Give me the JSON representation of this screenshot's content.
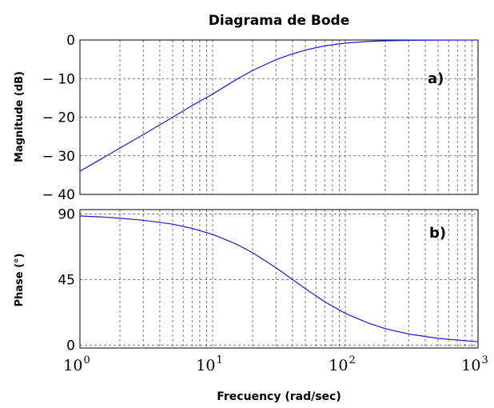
{
  "chart_data": [
    {
      "panel": "a)",
      "type": "line",
      "title": "Diagrama de Bode",
      "xlabel": "",
      "ylabel": "Magnitude (dB)",
      "xscale": "log",
      "xlim": [
        1,
        1000
      ],
      "ylim": [
        -40,
        0
      ],
      "yticks": [
        {
          "value": 0,
          "label": "0"
        },
        {
          "value": -10,
          "label": "− 10"
        },
        {
          "value": -20,
          "label": "− 20"
        },
        {
          "value": -30,
          "label": "− 30"
        },
        {
          "value": -40,
          "label": "− 40"
        }
      ],
      "grid": true,
      "color": "#1a1adb",
      "x": [
        1,
        1.5,
        2,
        3,
        5,
        7,
        10,
        15,
        20,
        30,
        40,
        50,
        70,
        100,
        150,
        200,
        300,
        500,
        1000
      ],
      "y": [
        -34,
        -30.5,
        -28,
        -24.5,
        -20,
        -17,
        -14,
        -10.3,
        -7.9,
        -5.1,
        -3.6,
        -2.6,
        -1.5,
        -0.8,
        -0.36,
        -0.2,
        -0.09,
        -0.03,
        -0.01
      ]
    },
    {
      "panel": "b)",
      "type": "line",
      "title": "",
      "xlabel": "Frecuency (rad/sec)",
      "ylabel": "Phase (°)",
      "xscale": "log",
      "xlim": [
        1,
        1000
      ],
      "ylim": [
        -2,
        93
      ],
      "yticks": [
        {
          "value": 90,
          "label": "90"
        },
        {
          "value": 45,
          "label": "45"
        },
        {
          "value": 0,
          "label": "0"
        }
      ],
      "xticks": [
        {
          "value": 1,
          "base": "10",
          "exp": "0"
        },
        {
          "value": 10,
          "base": "10",
          "exp": "1"
        },
        {
          "value": 100,
          "base": "10",
          "exp": "2"
        },
        {
          "value": 1000,
          "base": "10",
          "exp": "3"
        }
      ],
      "grid": true,
      "color": "#1a1adb",
      "x": [
        1,
        1.5,
        2,
        3,
        5,
        7,
        10,
        15,
        20,
        30,
        40,
        50,
        70,
        100,
        150,
        200,
        300,
        500,
        1000
      ],
      "y": [
        88.6,
        87.9,
        87.1,
        85.7,
        83,
        80.1,
        76,
        69.4,
        63.4,
        53.1,
        45,
        38.7,
        29.7,
        21.8,
        15,
        11.3,
        7.6,
        4.6,
        2.3
      ]
    }
  ]
}
